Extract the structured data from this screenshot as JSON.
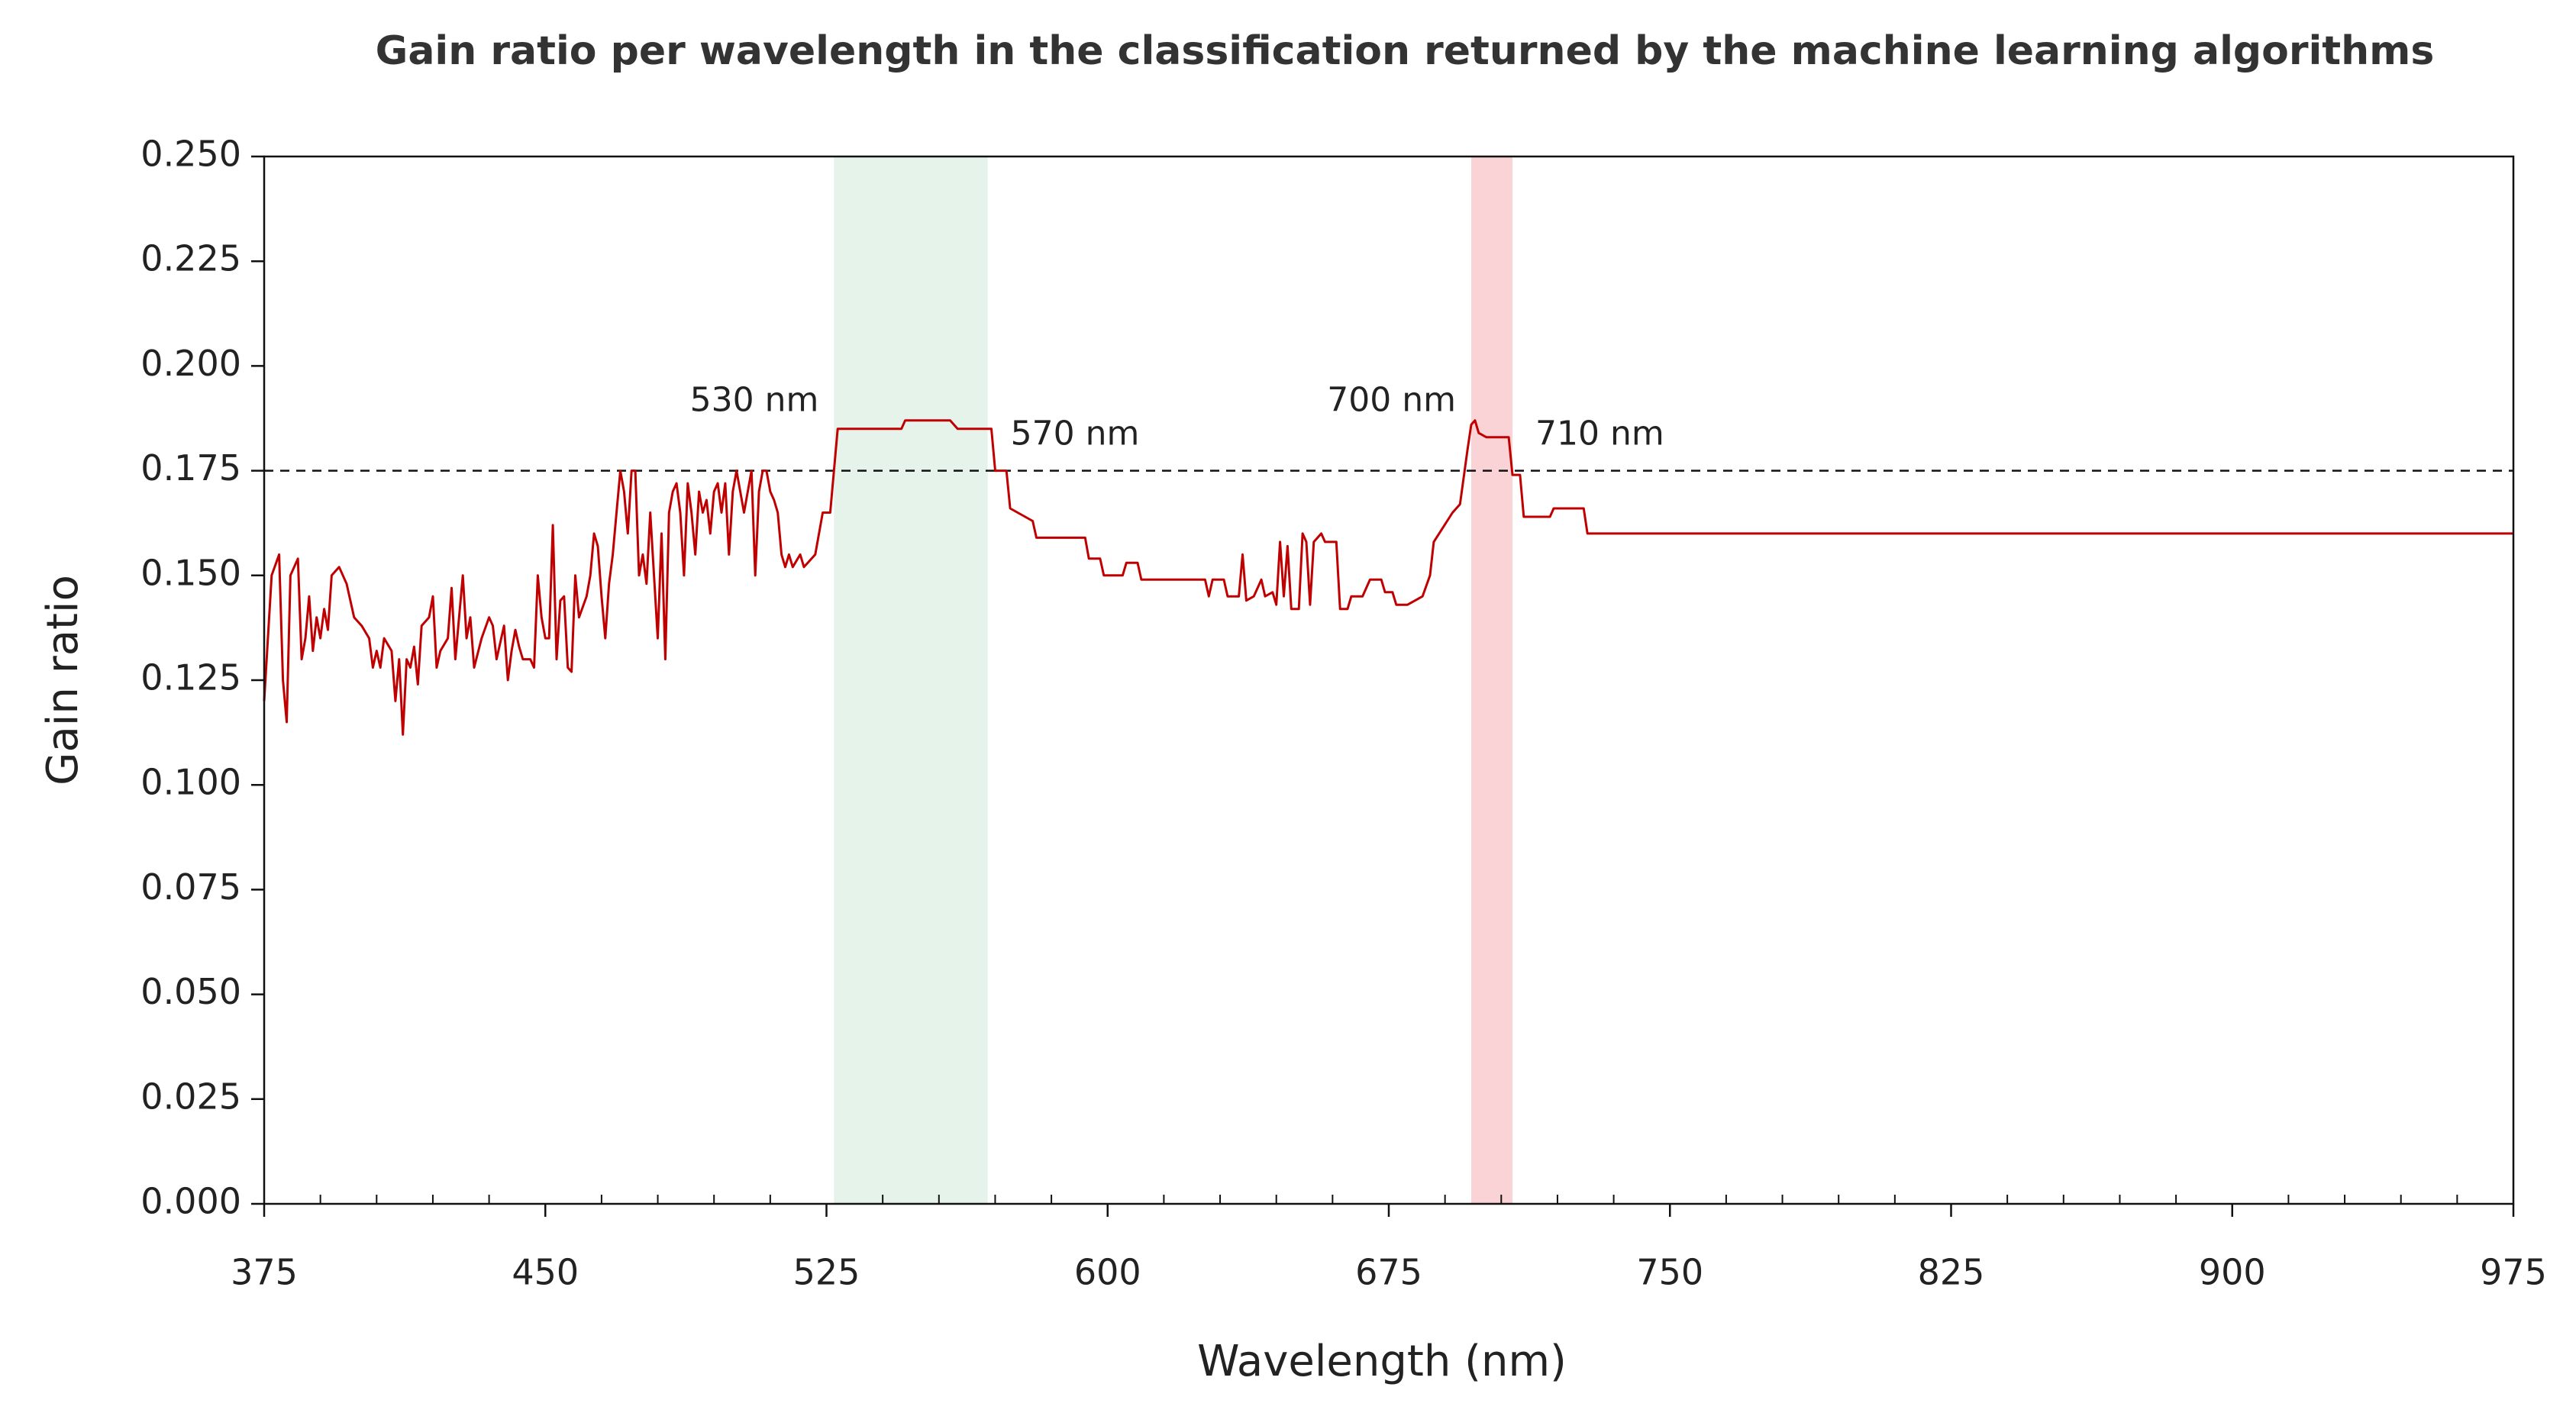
{
  "chart_data": {
    "type": "line",
    "title": "Gain ratio per wavelength in the classification returned by the machine learning algorithms",
    "xlabel": "Wavelength  (nm)",
    "ylabel": "Gain ratio",
    "color": "#c00000",
    "xlim": [
      375,
      975
    ],
    "ylim": [
      0,
      0.25
    ],
    "xticks": [
      375,
      450,
      525,
      600,
      675,
      750,
      825,
      900,
      975
    ],
    "yticks": [
      {
        "value": 0,
        "label": "0.000"
      },
      {
        "value": 0.025,
        "label": "0.025"
      },
      {
        "value": 0.05,
        "label": "0.050"
      },
      {
        "value": 0.075,
        "label": "0.075"
      },
      {
        "value": 0.1,
        "label": "0.100"
      },
      {
        "value": 0.125,
        "label": "0.125"
      },
      {
        "value": 0.15,
        "label": "0.150"
      },
      {
        "value": 0.175,
        "label": "0.175"
      },
      {
        "value": 0.2,
        "label": "0.200"
      },
      {
        "value": 0.225,
        "label": "0.225"
      },
      {
        "value": 0.25,
        "label": "0.250"
      }
    ],
    "threshold": 0.175,
    "bands": [
      {
        "range": [
          527,
          568
        ],
        "color": "#e5f3ea",
        "labels": [
          "530 nm",
          "570 nm"
        ]
      },
      {
        "range": [
          697,
          708
        ],
        "color": "#f9d3d5",
        "labels": [
          "700 nm",
          "710 nm"
        ]
      }
    ],
    "x": [
      375,
      377,
      379,
      380,
      381,
      382,
      384,
      385,
      386,
      387,
      388,
      389,
      390,
      391,
      392,
      393,
      395,
      397,
      399,
      401,
      403,
      404,
      405,
      406,
      407,
      409,
      410,
      411,
      412,
      413,
      414,
      415,
      416,
      417,
      419,
      420,
      421,
      422,
      424,
      425,
      426,
      427,
      428,
      429,
      430,
      431,
      433,
      435,
      436,
      437,
      438,
      439,
      440,
      441,
      442,
      443,
      444,
      446,
      447,
      448,
      449,
      450,
      451,
      452,
      453,
      454,
      455,
      456,
      457,
      458,
      459,
      461,
      462,
      463,
      464,
      465,
      466,
      467,
      468,
      469,
      470,
      471,
      472,
      473,
      474,
      475,
      476,
      477,
      478,
      479,
      480,
      481,
      482,
      483,
      484,
      485,
      486,
      487,
      488,
      489,
      490,
      491,
      492,
      493,
      494,
      495,
      496,
      497,
      498,
      499,
      500,
      501,
      502,
      503,
      504,
      505,
      506,
      507,
      508,
      509,
      510,
      511,
      512,
      513,
      514,
      515,
      516,
      518,
      519,
      520,
      522,
      524,
      526,
      527,
      528,
      545,
      546,
      558,
      560,
      569,
      570,
      573,
      574,
      580,
      581,
      594,
      595,
      598,
      599,
      604,
      605,
      608,
      609,
      626,
      627,
      628,
      631,
      632,
      635,
      636,
      637,
      639,
      641,
      642,
      644,
      645,
      646,
      647,
      648,
      649,
      651,
      652,
      653,
      654,
      655,
      657,
      658,
      661,
      662,
      664,
      665,
      668,
      670,
      673,
      674,
      676,
      677,
      680,
      682,
      684,
      686,
      687,
      692,
      694,
      696,
      697,
      698,
      699,
      701,
      707,
      708,
      710,
      711,
      718,
      719,
      727,
      728,
      975
    ],
    "values": [
      0.12,
      0.15,
      0.155,
      0.125,
      0.115,
      0.15,
      0.154,
      0.13,
      0.135,
      0.145,
      0.132,
      0.14,
      0.135,
      0.142,
      0.137,
      0.15,
      0.152,
      0.148,
      0.14,
      0.138,
      0.135,
      0.128,
      0.132,
      0.128,
      0.135,
      0.132,
      0.12,
      0.13,
      0.112,
      0.13,
      0.128,
      0.133,
      0.124,
      0.138,
      0.14,
      0.145,
      0.128,
      0.132,
      0.135,
      0.147,
      0.13,
      0.14,
      0.15,
      0.135,
      0.14,
      0.128,
      0.135,
      0.14,
      0.138,
      0.13,
      0.134,
      0.138,
      0.125,
      0.132,
      0.137,
      0.133,
      0.13,
      0.13,
      0.128,
      0.15,
      0.14,
      0.135,
      0.135,
      0.162,
      0.13,
      0.144,
      0.145,
      0.128,
      0.127,
      0.15,
      0.14,
      0.145,
      0.15,
      0.16,
      0.157,
      0.145,
      0.135,
      0.148,
      0.155,
      0.165,
      0.175,
      0.17,
      0.16,
      0.175,
      0.175,
      0.15,
      0.155,
      0.148,
      0.165,
      0.15,
      0.135,
      0.16,
      0.13,
      0.165,
      0.17,
      0.172,
      0.165,
      0.15,
      0.172,
      0.165,
      0.155,
      0.17,
      0.165,
      0.168,
      0.16,
      0.17,
      0.172,
      0.165,
      0.172,
      0.155,
      0.17,
      0.175,
      0.17,
      0.165,
      0.17,
      0.175,
      0.15,
      0.17,
      0.175,
      0.175,
      0.17,
      0.168,
      0.165,
      0.155,
      0.152,
      0.155,
      0.152,
      0.155,
      0.152,
      0.153,
      0.155,
      0.165,
      0.165,
      0.175,
      0.185,
      0.185,
      0.187,
      0.187,
      0.185,
      0.185,
      0.175,
      0.175,
      0.166,
      0.163,
      0.159,
      0.159,
      0.154,
      0.154,
      0.15,
      0.15,
      0.153,
      0.153,
      0.149,
      0.149,
      0.145,
      0.149,
      0.149,
      0.145,
      0.145,
      0.155,
      0.144,
      0.145,
      0.149,
      0.145,
      0.146,
      0.143,
      0.158,
      0.145,
      0.157,
      0.142,
      0.142,
      0.16,
      0.158,
      0.143,
      0.158,
      0.16,
      0.158,
      0.158,
      0.142,
      0.142,
      0.145,
      0.145,
      0.149,
      0.149,
      0.146,
      0.146,
      0.143,
      0.143,
      0.144,
      0.145,
      0.15,
      0.158,
      0.165,
      0.167,
      0.18,
      0.186,
      0.187,
      0.184,
      0.183,
      0.183,
      0.174,
      0.174,
      0.164,
      0.164,
      0.166,
      0.166,
      0.16,
      0.16
    ]
  }
}
